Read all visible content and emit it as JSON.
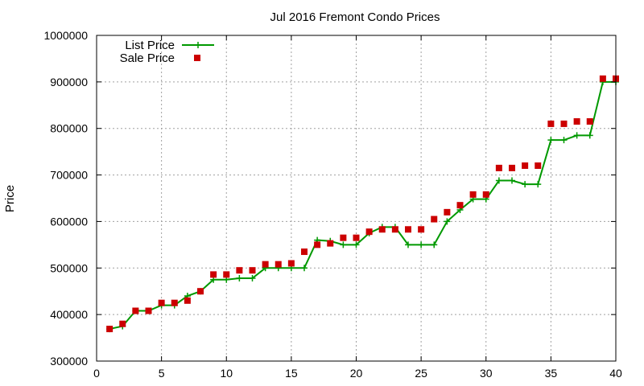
{
  "chart_data": {
    "type": "line",
    "title": "Jul 2016 Fremont Condo Prices",
    "xlabel": "",
    "ylabel": "Price",
    "xlim": [
      0,
      40
    ],
    "ylim": [
      300000,
      1000000
    ],
    "xticks": [
      0,
      5,
      10,
      15,
      20,
      25,
      30,
      35,
      40
    ],
    "yticks": [
      300000,
      400000,
      500000,
      600000,
      700000,
      800000,
      900000,
      1000000
    ],
    "grid": true,
    "legend_position": "top-left",
    "x": [
      1,
      2,
      3,
      4,
      5,
      6,
      7,
      8,
      9,
      10,
      11,
      12,
      13,
      14,
      15,
      16,
      17,
      18,
      19,
      20,
      21,
      22,
      23,
      24,
      25,
      26,
      27,
      28,
      29,
      30,
      31,
      32,
      33,
      34,
      35,
      36,
      37,
      38,
      39,
      40
    ],
    "series": [
      {
        "name": "List Price",
        "style": "line-with-plus-markers",
        "color": "#009900",
        "values": [
          369000,
          375000,
          408000,
          408000,
          420000,
          420000,
          440000,
          450000,
          475000,
          475000,
          478000,
          478000,
          500000,
          500000,
          500000,
          500000,
          560000,
          558000,
          550000,
          550000,
          575000,
          588000,
          588000,
          550000,
          550000,
          550000,
          600000,
          625000,
          648000,
          648000,
          688000,
          688000,
          680000,
          680000,
          775000,
          775000,
          785000,
          785000,
          900000,
          900000
        ]
      },
      {
        "name": "Sale Price",
        "style": "square-markers",
        "color": "#cc0000",
        "values": [
          369000,
          380000,
          408000,
          408000,
          425000,
          425000,
          430000,
          450000,
          486000,
          486000,
          495000,
          495000,
          508000,
          508000,
          510000,
          535000,
          550000,
          553000,
          565000,
          565000,
          578000,
          583000,
          583000,
          583000,
          583000,
          605000,
          620000,
          635000,
          658000,
          658000,
          715000,
          715000,
          720000,
          720000,
          810000,
          810000,
          815000,
          815000,
          907000,
          907000
        ]
      }
    ]
  }
}
